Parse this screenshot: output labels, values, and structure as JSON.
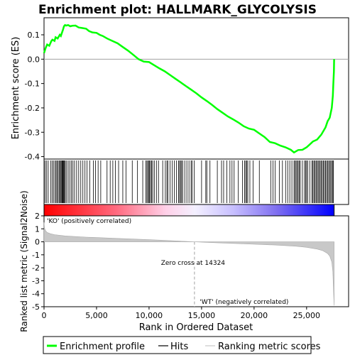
{
  "chart_data": {
    "type": "line",
    "title": "Enrichment plot: HALLMARK_GLYCOLYSIS",
    "es_panel": {
      "ylabel": "Enrichment score (ES)",
      "ylim": [
        -0.41,
        0.17
      ],
      "yticks": [
        0.1,
        0.0,
        -0.1,
        -0.2,
        -0.3,
        -0.4
      ],
      "ytick_labels": [
        "0.1",
        "0.0",
        "-0.1",
        "-0.2",
        "-0.3",
        "-0.4"
      ],
      "series": [
        {
          "name": "Enrichment profile",
          "color": "#00ff00",
          "x": [
            0,
            150,
            300,
            500,
            700,
            800,
            1000,
            1100,
            1300,
            1500,
            1600,
            1800,
            1900,
            2000,
            2100,
            2300,
            2500,
            2700,
            3000,
            3300,
            3600,
            4000,
            4300,
            4600,
            5000,
            5300,
            5600,
            6000,
            6500,
            7000,
            7500,
            8000,
            8500,
            9000,
            9500,
            10000,
            10500,
            11000,
            11500,
            12000,
            12500,
            13000,
            13500,
            14000,
            14500,
            15000,
            15500,
            16000,
            16500,
            17000,
            17500,
            18000,
            18500,
            19000,
            19500,
            20000,
            20500,
            21000,
            21500,
            22000,
            22500,
            23000,
            23500,
            23800,
            24200,
            24600,
            25000,
            25300,
            25600,
            26000,
            26400,
            26800,
            27000,
            27200,
            27400,
            27500,
            27550,
            27600,
            27620
          ],
          "y": [
            0.025,
            0.045,
            0.06,
            0.055,
            0.075,
            0.08,
            0.075,
            0.09,
            0.085,
            0.1,
            0.095,
            0.12,
            0.135,
            0.14,
            0.138,
            0.14,
            0.135,
            0.137,
            0.138,
            0.13,
            0.128,
            0.125,
            0.115,
            0.11,
            0.108,
            0.1,
            0.095,
            0.085,
            0.075,
            0.065,
            0.05,
            0.035,
            0.018,
            0.0,
            -0.01,
            -0.012,
            -0.025,
            -0.038,
            -0.05,
            -0.065,
            -0.08,
            -0.095,
            -0.11,
            -0.125,
            -0.14,
            -0.157,
            -0.172,
            -0.188,
            -0.205,
            -0.22,
            -0.235,
            -0.247,
            -0.26,
            -0.275,
            -0.285,
            -0.29,
            -0.305,
            -0.32,
            -0.34,
            -0.345,
            -0.355,
            -0.362,
            -0.372,
            -0.383,
            -0.373,
            -0.372,
            -0.362,
            -0.35,
            -0.338,
            -0.33,
            -0.31,
            -0.28,
            -0.255,
            -0.24,
            -0.2,
            -0.15,
            -0.1,
            -0.05,
            0.0
          ]
        }
      ]
    },
    "hits": {
      "name": "Hits",
      "positions": [
        100,
        250,
        400,
        650,
        780,
        900,
        1050,
        1150,
        1250,
        1350,
        1450,
        1550,
        1620,
        1700,
        1760,
        1820,
        1880,
        1950,
        2020,
        2150,
        2300,
        2450,
        2600,
        2750,
        2900,
        3100,
        3300,
        3500,
        3700,
        3900,
        4100,
        4350,
        4700,
        4900,
        5150,
        5400,
        6000,
        6300,
        6550,
        6800,
        7100,
        7500,
        7800,
        8400,
        8900,
        9400,
        9700,
        9800,
        9900,
        10000,
        10050,
        10150,
        10250,
        10350,
        10500,
        10700,
        10900,
        11300,
        11550,
        11700,
        11800,
        12000,
        12200,
        12400,
        12600,
        12800,
        12900,
        13000,
        13100,
        13200,
        13400,
        13600,
        13800,
        14000,
        14100,
        14300,
        15000,
        15400,
        15500,
        15800,
        16500,
        16900,
        17100,
        17400,
        17700,
        17900,
        18100,
        18500,
        18900,
        19100,
        19200,
        19300,
        19400,
        19600,
        19900,
        20500,
        21600,
        21800,
        22000,
        22400,
        22700,
        23000,
        23200,
        23400,
        23600,
        23800,
        23900,
        24000,
        24100,
        24200,
        24300,
        24400,
        24600,
        24800,
        24900,
        25000,
        25100,
        25300,
        25500,
        25600,
        25700,
        25800,
        25900,
        26000,
        26100,
        26200,
        26300,
        26400,
        26500,
        26600,
        26700,
        26800,
        26900,
        27000,
        27100,
        27200,
        27300,
        27400,
        27500,
        27560
      ]
    },
    "metric_panel": {
      "ylabel": "Ranked list metric (Signal2Noise)",
      "ylim": [
        -5,
        2
      ],
      "yticks": [
        2,
        1,
        0,
        -1,
        -2,
        -3,
        -4,
        -5
      ],
      "ytick_labels": [
        "2",
        "1",
        "0",
        "-1",
        "-2",
        "-3",
        "-4",
        "-5"
      ],
      "series": [
        {
          "name": "Ranking metric scores",
          "color": "#c8c8c8",
          "x": [
            0,
            50,
            150,
            300,
            600,
            1000,
            2000,
            4000,
            7000,
            10000,
            12000,
            14324,
            16000,
            18000,
            20000,
            22000,
            24000,
            25000,
            26000,
            26500,
            27000,
            27200,
            27400,
            27500,
            27550,
            27600,
            27620
          ],
          "y": [
            1.5,
            1.05,
            0.85,
            0.72,
            0.62,
            0.55,
            0.45,
            0.36,
            0.26,
            0.16,
            0.09,
            0.0,
            -0.06,
            -0.12,
            -0.19,
            -0.25,
            -0.34,
            -0.42,
            -0.56,
            -0.67,
            -0.9,
            -1.1,
            -1.55,
            -2.3,
            -3.4,
            -4.5,
            -4.9
          ]
        }
      ],
      "zero_cross_label": "Zero cross at 14324",
      "zero_cross": 14324,
      "pos_label": "'KO' (positively correlated)",
      "neg_label": "'WT' (negatively correlated)"
    },
    "xlabel": "Rank in Ordered Dataset",
    "xlim": [
      0,
      29000
    ],
    "xticks": [
      0,
      5000,
      10000,
      15000,
      20000,
      25000
    ],
    "xtick_labels": [
      "0",
      "5,000",
      "10,000",
      "15,000",
      "20,000",
      "25,000"
    ],
    "n_genes": 27620,
    "legend": {
      "placement": "bottom",
      "entries": [
        {
          "label": "Enrichment profile",
          "color": "#00ff00"
        },
        {
          "label": "Hits",
          "color": "#000000"
        },
        {
          "label": "Ranking metric scores",
          "color": "#c8c8c8"
        }
      ]
    },
    "colors": {
      "es_line": "#00ff00",
      "zero_line": "#a0a0a0",
      "pos_bar": "#ff0000",
      "neg_bar": "#0000ff",
      "pos_text": "#ff0000",
      "neg_text": "#0000ff"
    }
  }
}
